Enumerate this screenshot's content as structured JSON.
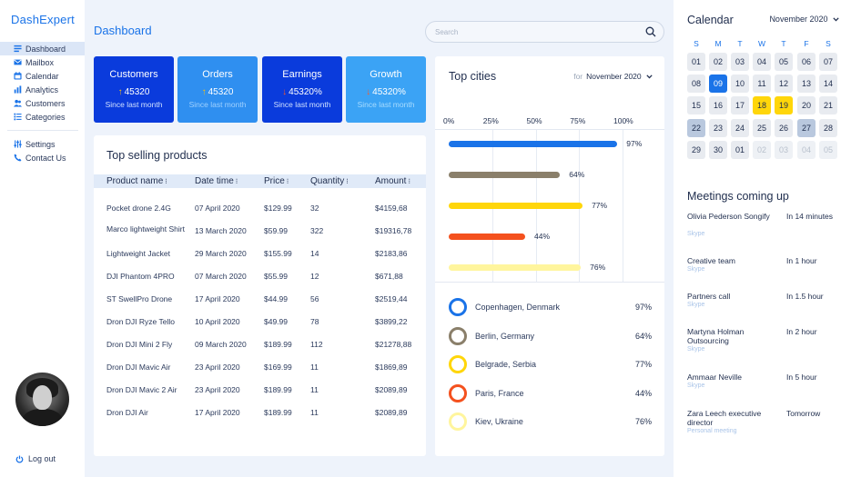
{
  "app": {
    "brand": "DashExpert"
  },
  "sidebar": {
    "items": [
      {
        "label": "Dashboard",
        "icon": "dashboard-icon",
        "active": true
      },
      {
        "label": "Mailbox",
        "icon": "mail-icon"
      },
      {
        "label": "Calendar",
        "icon": "calendar-icon"
      },
      {
        "label": "Analytics",
        "icon": "analytics-icon"
      },
      {
        "label": "Customers",
        "icon": "customers-icon"
      },
      {
        "label": "Categories",
        "icon": "categories-icon"
      }
    ],
    "secondary": [
      {
        "label": "Settings",
        "icon": "sliders-icon"
      },
      {
        "label": "Contact Us",
        "icon": "phone-icon"
      }
    ],
    "logout": "Log out"
  },
  "header": {
    "title": "Dashboard",
    "search_placeholder": "Search"
  },
  "stats": [
    {
      "title": "Customers",
      "value": "45320",
      "trend": "up",
      "arrow": "↑",
      "sub": "Since last month"
    },
    {
      "title": "Orders",
      "value": "45320",
      "trend": "up",
      "arrow": "↑",
      "sub": "Since last month"
    },
    {
      "title": "Earnings",
      "value": "45320%",
      "trend": "down",
      "arrow": "↓",
      "sub": "Since last month"
    },
    {
      "title": "Growth",
      "value": "45320%",
      "trend": "down",
      "arrow": "↓",
      "sub": "Since last month"
    }
  ],
  "products": {
    "title": "Top selling products",
    "columns": [
      "Product name",
      "Date time",
      "Price",
      "Quantity",
      "Amount"
    ],
    "sort_glyph": "⁝",
    "rows": [
      [
        "Pocket drone 2.4G",
        "07 April 2020",
        "$129.99",
        "32",
        "$4159,68"
      ],
      [
        "Marco lightweight Shirt",
        "13 March 2020",
        "$59.99",
        "322",
        "$19316,78"
      ],
      [
        "Lightweight Jacket",
        "29 March 2020",
        "$155.99",
        "14",
        "$2183,86"
      ],
      [
        "DJI Phantom 4PRO",
        "07 March 2020",
        "$55.99",
        "12",
        "$671,88"
      ],
      [
        "ST SwellPro Drone",
        "17 April 2020",
        "$44.99",
        "56",
        "$2519,44"
      ],
      [
        "Dron DJI Ryze Tello",
        "10 April 2020",
        "$49.99",
        "78",
        "$3899,22"
      ],
      [
        "Dron DJI Mini 2 Fly",
        "09 March 2020",
        "$189.99",
        "112",
        "$21278,88"
      ],
      [
        "Dron DJI Mavic Air",
        "23 April 2020",
        "$169.99",
        "11",
        "$1869,89"
      ],
      [
        "Dron DJI Mavic 2 Air",
        "23 April 2020",
        "$189.99",
        "11",
        "$2089,89"
      ],
      [
        "Dron DJI Air",
        "17 April 2020",
        "$189.99",
        "11",
        "$2089,89"
      ]
    ]
  },
  "cities": {
    "title": "Top cities",
    "period_prefix": "for",
    "period": "November 2020",
    "chevron": "⌄"
  },
  "chart_data": {
    "type": "bar",
    "orientation": "horizontal",
    "xlim": [
      0,
      100
    ],
    "ticks": [
      "0%",
      "25%",
      "50%",
      "75%",
      "100%"
    ],
    "tick_values": [
      0,
      25,
      50,
      75,
      100
    ],
    "categories": [
      "Copenhagen, Denmark",
      "Berlin, Germany",
      "Belgrade, Serbia",
      "Paris, France",
      "Kiev, Ukraine"
    ],
    "values": [
      97,
      64,
      77,
      44,
      76
    ],
    "value_labels": [
      "97%",
      "64%",
      "77%",
      "44%",
      "76%"
    ],
    "colors": [
      "#1a73e8",
      "#8a7f6a",
      "#ffd60a",
      "#f4511e",
      "#fff59d"
    ],
    "grid": true,
    "legend": "bottom"
  },
  "calendar": {
    "title": "Calendar",
    "month": "November 2020",
    "weekdays": [
      "S",
      "M",
      "T",
      "W",
      "T",
      "F",
      "S"
    ],
    "days": [
      {
        "d": "01",
        "s": ""
      },
      {
        "d": "02",
        "s": ""
      },
      {
        "d": "03",
        "s": ""
      },
      {
        "d": "04",
        "s": ""
      },
      {
        "d": "05",
        "s": ""
      },
      {
        "d": "06",
        "s": ""
      },
      {
        "d": "07",
        "s": ""
      },
      {
        "d": "08",
        "s": ""
      },
      {
        "d": "09",
        "s": "today"
      },
      {
        "d": "10",
        "s": ""
      },
      {
        "d": "11",
        "s": ""
      },
      {
        "d": "12",
        "s": ""
      },
      {
        "d": "13",
        "s": ""
      },
      {
        "d": "14",
        "s": ""
      },
      {
        "d": "15",
        "s": ""
      },
      {
        "d": "16",
        "s": ""
      },
      {
        "d": "17",
        "s": ""
      },
      {
        "d": "18",
        "s": "hl"
      },
      {
        "d": "19",
        "s": "hl"
      },
      {
        "d": "20",
        "s": ""
      },
      {
        "d": "21",
        "s": ""
      },
      {
        "d": "22",
        "s": "sel"
      },
      {
        "d": "23",
        "s": ""
      },
      {
        "d": "24",
        "s": ""
      },
      {
        "d": "25",
        "s": ""
      },
      {
        "d": "26",
        "s": ""
      },
      {
        "d": "27",
        "s": "sel"
      },
      {
        "d": "28",
        "s": ""
      },
      {
        "d": "29",
        "s": ""
      },
      {
        "d": "30",
        "s": ""
      },
      {
        "d": "01",
        "s": ""
      },
      {
        "d": "02",
        "s": "muted"
      },
      {
        "d": "03",
        "s": "muted"
      },
      {
        "d": "04",
        "s": "muted"
      },
      {
        "d": "05",
        "s": "muted"
      }
    ]
  },
  "meetings": {
    "title": "Meetings coming up",
    "items": [
      {
        "name": "Olivia Pederson Songify",
        "when": "In 14 minutes",
        "via": "Skype"
      },
      {
        "name": "Creative team",
        "when": "In 1 hour",
        "via": "Skype"
      },
      {
        "name": "Partners call",
        "when": "In 1.5 hour",
        "via": "Skype"
      },
      {
        "name": "Martyna Holman Outsourcing",
        "when": "In 2 hour",
        "via": "Skype"
      },
      {
        "name": "Ammaar Neville",
        "when": "In 5 hour",
        "via": "Skype"
      },
      {
        "name": "Zara Leech executive director",
        "when": "Tomorrow",
        "via": "Personal meeting"
      }
    ]
  }
}
